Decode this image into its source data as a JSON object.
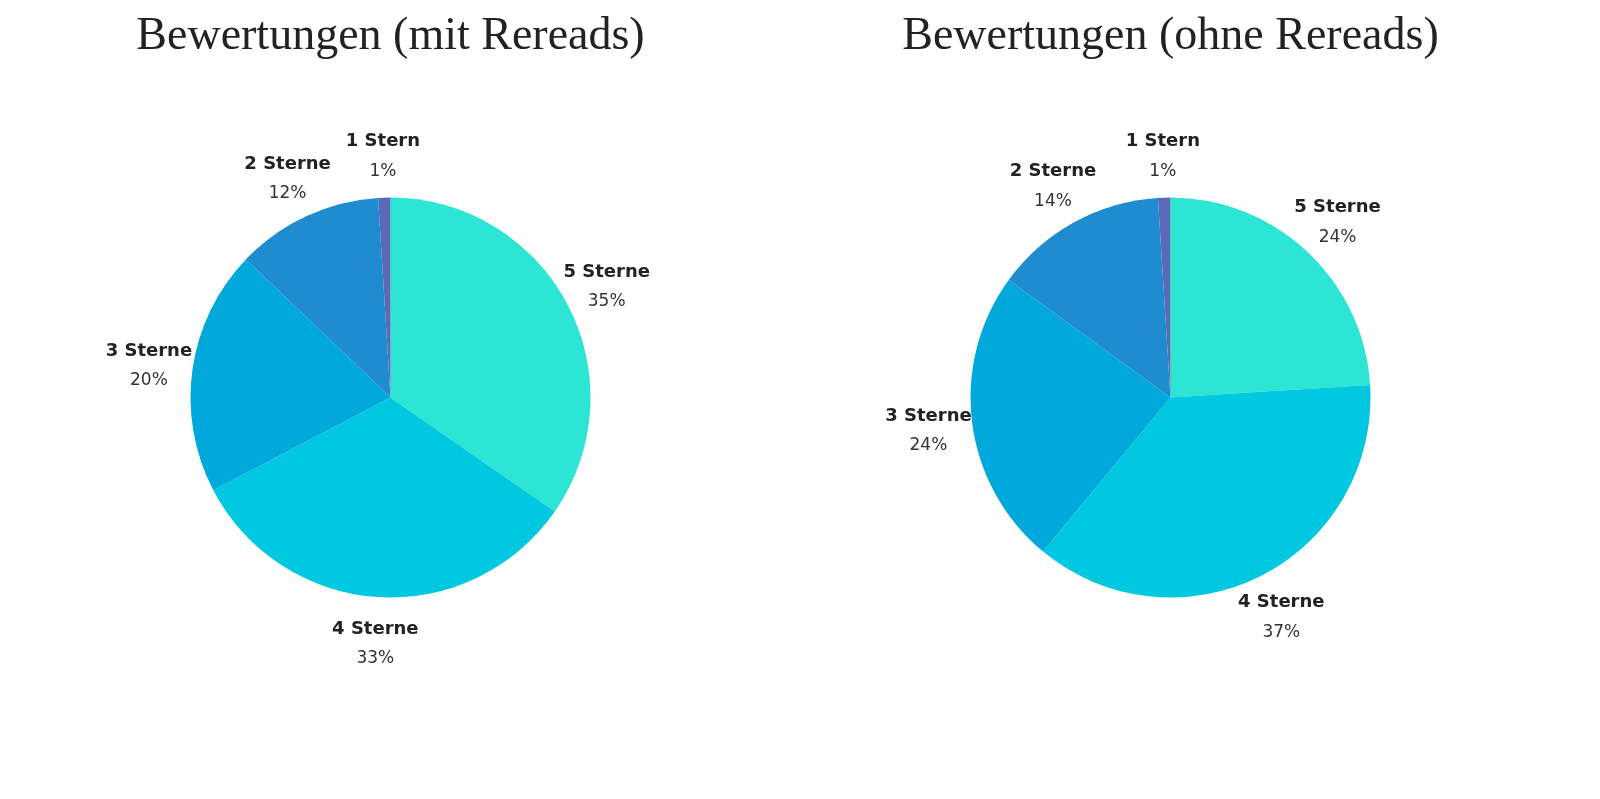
{
  "chart_data": [
    {
      "type": "pie",
      "title": "Bewertungen (mit Rereads)",
      "categories": [
        "5 Sterne",
        "4 Sterne",
        "3 Sterne",
        "2 Sterne",
        "1 Stern"
      ],
      "values": [
        35,
        33,
        20,
        12,
        1
      ],
      "value_labels": [
        "35%",
        "33%",
        "20%",
        "12%",
        "1%"
      ],
      "colors": [
        "#2ce5d5",
        "#00c8e0",
        "#00a8dc",
        "#1e8ccf",
        "#5b6ab8"
      ]
    },
    {
      "type": "pie",
      "title": "Bewertungen (ohne Rereads)",
      "categories": [
        "5 Sterne",
        "4 Sterne",
        "3 Sterne",
        "2 Sterne",
        "1 Stern"
      ],
      "values": [
        24,
        37,
        24,
        14,
        1
      ],
      "value_labels": [
        "24%",
        "37%",
        "24%",
        "14%",
        "1%"
      ],
      "colors": [
        "#2ce5d5",
        "#00c8e0",
        "#00a8dc",
        "#1e8ccf",
        "#5b6ab8"
      ]
    }
  ]
}
